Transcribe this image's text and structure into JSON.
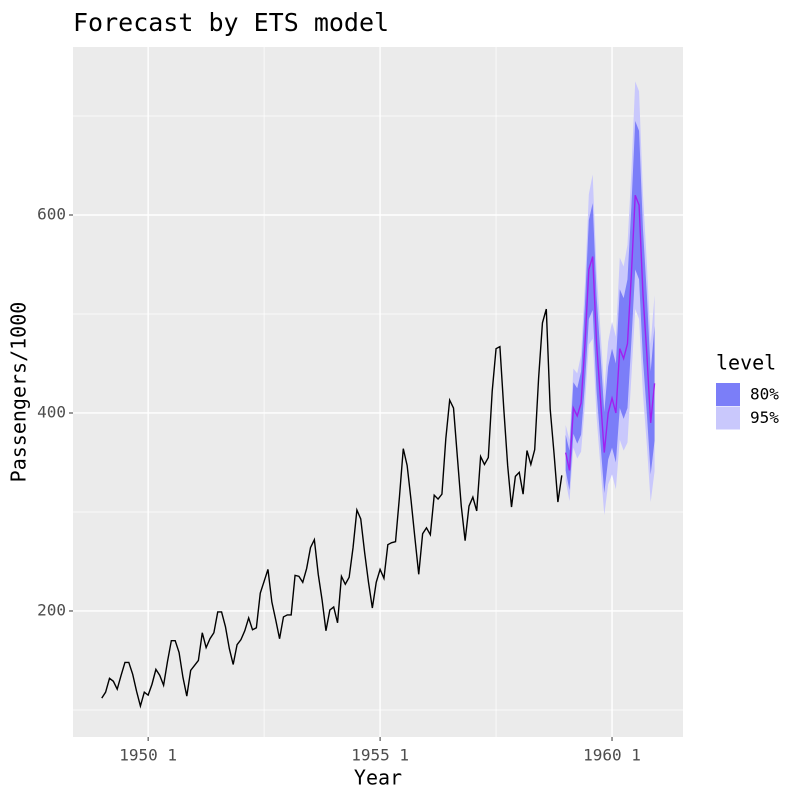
{
  "chart_data": {
    "type": "forecast",
    "title": "Forecast by ETS model",
    "x_label": "Year",
    "y_label": "Passengers/1000",
    "xlim": [
      1948.38,
      1961.53
    ],
    "ylim": [
      72.7,
      769.7
    ],
    "xticks": [
      {
        "value": 1950,
        "label": "1950 1"
      },
      {
        "value": 1955,
        "label": "1955 1"
      },
      {
        "value": 1960,
        "label": "1960 1"
      }
    ],
    "yticks": [
      200,
      400,
      600
    ],
    "grid": true,
    "legend_title": "level",
    "legend_position": "right",
    "series": [
      {
        "color": "#000000",
        "x": [
          1949,
          1949.083,
          1949.167,
          1949.25,
          1949.333,
          1949.417,
          1949.5,
          1949.583,
          1949.667,
          1949.75,
          1949.833,
          1949.917,
          1950,
          1950.083,
          1950.167,
          1950.25,
          1950.333,
          1950.417,
          1950.5,
          1950.583,
          1950.667,
          1950.75,
          1950.833,
          1950.917,
          1951,
          1951.083,
          1951.167,
          1951.25,
          1951.333,
          1951.417,
          1951.5,
          1951.583,
          1951.667,
          1951.75,
          1951.833,
          1951.917,
          1952,
          1952.083,
          1952.167,
          1952.25,
          1952.333,
          1952.417,
          1952.5,
          1952.583,
          1952.667,
          1952.75,
          1952.833,
          1952.917,
          1953,
          1953.083,
          1953.167,
          1953.25,
          1953.333,
          1953.417,
          1953.5,
          1953.583,
          1953.667,
          1953.75,
          1953.833,
          1953.917,
          1954,
          1954.083,
          1954.167,
          1954.25,
          1954.333,
          1954.417,
          1954.5,
          1954.583,
          1954.667,
          1954.75,
          1954.833,
          1954.917,
          1955,
          1955.083,
          1955.167,
          1955.25,
          1955.333,
          1955.417,
          1955.5,
          1955.583,
          1955.667,
          1955.75,
          1955.833,
          1955.917,
          1956,
          1956.083,
          1956.167,
          1956.25,
          1956.333,
          1956.417,
          1956.5,
          1956.583,
          1956.667,
          1956.75,
          1956.833,
          1956.917,
          1957,
          1957.083,
          1957.167,
          1957.25,
          1957.333,
          1957.417,
          1957.5,
          1957.583,
          1957.667,
          1957.75,
          1957.833,
          1957.917,
          1958,
          1958.083,
          1958.167,
          1958.25,
          1958.333,
          1958.417,
          1958.5,
          1958.583,
          1958.667,
          1958.75,
          1958.833,
          1958.917
        ],
        "values": [
          112,
          118,
          132,
          129,
          121,
          135,
          148,
          148,
          136,
          119,
          104,
          118,
          115,
          126,
          141,
          135,
          125,
          149,
          170,
          170,
          158,
          133,
          114,
          140,
          145,
          150,
          178,
          163,
          172,
          178,
          199,
          199,
          184,
          162,
          146,
          166,
          171,
          180,
          193,
          181,
          183,
          218,
          230,
          242,
          209,
          191,
          172,
          194,
          196,
          196,
          236,
          235,
          229,
          243,
          264,
          272,
          237,
          211,
          180,
          201,
          204,
          188,
          235,
          227,
          234,
          264,
          302,
          293,
          259,
          229,
          203,
          229,
          242,
          233,
          267,
          269,
          270,
          315,
          364,
          347,
          312,
          274,
          237,
          278,
          284,
          277,
          317,
          313,
          318,
          374,
          413,
          405,
          355,
          306,
          271,
          306,
          315,
          301,
          356,
          348,
          355,
          422,
          465,
          467,
          404,
          347,
          305,
          336,
          340,
          318,
          362,
          348,
          363,
          435,
          491,
          505,
          404,
          359,
          310,
          337
        ]
      },
      {
        "color": "#a020f0",
        "x": [
          1959,
          1959.083,
          1959.167,
          1959.25,
          1959.333,
          1959.417,
          1959.5,
          1959.583,
          1959.667,
          1959.75,
          1959.833,
          1959.917,
          1960,
          1960.083,
          1960.167,
          1960.25,
          1960.333,
          1960.417,
          1960.5,
          1960.583,
          1960.667,
          1960.75,
          1960.833,
          1960.917
        ],
        "values": [
          360,
          342,
          405,
          397,
          410,
          470,
          545,
          558,
          470,
          415,
          360,
          400,
          415,
          400,
          465,
          455,
          470,
          540,
          620,
          610,
          520,
          460,
          390,
          430
        ]
      }
    ],
    "bands": [
      {
        "name": "80%",
        "color": "#7b7ef8",
        "lower": [
          342,
          322,
          379,
          369,
          378,
          430,
          495,
          504,
          422,
          370,
          319,
          353,
          365,
          350,
          405,
          394,
          405,
          472,
          545,
          535,
          454,
          400,
          338,
          372
        ],
        "upper": [
          378,
          362,
          431,
          425,
          442,
          510,
          595,
          612,
          518,
          460,
          401,
          447,
          465,
          450,
          525,
          516,
          535,
          608,
          695,
          685,
          586,
          520,
          442,
          488
        ]
      },
      {
        "name": "95%",
        "color": "#c9c8fc",
        "lower": [
          332,
          311,
          365,
          354,
          361,
          409,
          469,
          475,
          396,
          346,
          297,
          328,
          338,
          323,
          373,
          362,
          370,
          436,
          505,
          495,
          419,
          368,
          310,
          341
        ],
        "upper": [
          388,
          373,
          445,
          440,
          459,
          531,
          621,
          641,
          544,
          484,
          423,
          472,
          492,
          477,
          557,
          548,
          570,
          644,
          735,
          725,
          621,
          552,
          470,
          519
        ]
      }
    ]
  }
}
